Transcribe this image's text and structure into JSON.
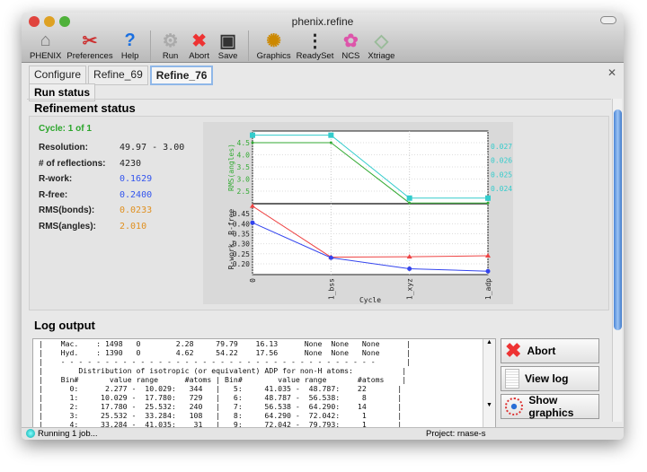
{
  "window": {
    "title": "phenix.refine"
  },
  "toolbar": [
    {
      "label": "PHENIX",
      "icon": "home-icon"
    },
    {
      "label": "Preferences",
      "icon": "tools-icon"
    },
    {
      "label": "Help",
      "icon": "help-icon"
    },
    {
      "label": "Run",
      "icon": "gear-icon"
    },
    {
      "label": "Abort",
      "icon": "abort-icon"
    },
    {
      "label": "Save",
      "icon": "save-icon"
    },
    {
      "label": "Graphics",
      "icon": "graphics-icon"
    },
    {
      "label": "ReadySet",
      "icon": "traffic-light-icon"
    },
    {
      "label": "NCS",
      "icon": "ncs-icon"
    },
    {
      "label": "Xtriage",
      "icon": "xtriage-icon"
    }
  ],
  "tabs": [
    "Configure",
    "Refine_69",
    "Refine_76"
  ],
  "active_tab": "Refine_76",
  "subtab": "Run status",
  "refinement": {
    "heading": "Refinement status",
    "cycle": "Cycle: 1 of 1",
    "stats": [
      {
        "label": "Resolution:",
        "value": "49.97 - 3.00",
        "color": "#222222"
      },
      {
        "label": "# of reflections:",
        "value": "4230",
        "color": "#222222"
      },
      {
        "label": "R-work:",
        "value": "0.1629",
        "color": "#3355ee"
      },
      {
        "label": "R-free:",
        "value": "0.2400",
        "color": "#3355ee"
      },
      {
        "label": "RMS(bonds):",
        "value": "0.0233",
        "color": "#e09020"
      },
      {
        "label": "RMS(angles):",
        "value": "2.010",
        "color": "#e09020"
      }
    ]
  },
  "chart_data": {
    "type": "line",
    "x": [
      "0",
      "1_bss",
      "1_xyz",
      "1_adp"
    ],
    "xlabel": "Cycle",
    "top": {
      "ylabel_left": "RMS(angles)",
      "ylabel_right": "RMS(bonds)",
      "ylim_left": [
        1.98,
        4.98
      ],
      "ylim_right": [
        0.0229,
        0.0281
      ],
      "yticks_left": [
        "2.5",
        "3.0",
        "3.5",
        "4.0",
        "4.5"
      ],
      "yticks_right": [
        "0.024",
        "0.025",
        "0.026",
        "0.027"
      ],
      "series": [
        {
          "name": "RMS(angles)",
          "axis": "left",
          "color": "#33aa33",
          "values": [
            4.5,
            4.5,
            2.01,
            2.01
          ]
        },
        {
          "name": "RMS(bonds)",
          "axis": "right",
          "color": "#33cccc",
          "values": [
            0.0278,
            0.0278,
            0.0233,
            0.0233
          ]
        }
      ]
    },
    "bottom": {
      "ylabel": "R-work, R-free",
      "ylim": [
        0.146,
        0.5
      ],
      "yticks": [
        "0.20",
        "0.25",
        "0.30",
        "0.35",
        "0.40",
        "0.45"
      ],
      "series": [
        {
          "name": "R-free",
          "color": "#ee4444",
          "values": [
            0.488,
            0.233,
            0.235,
            0.24
          ]
        },
        {
          "name": "R-work",
          "color": "#3344ee",
          "values": [
            0.405,
            0.23,
            0.175,
            0.163
          ]
        }
      ]
    },
    "grid": true
  },
  "log": {
    "heading": "Log output",
    "lines": [
      "|    Mac.    : 1498   0        2.28     79.79    16.13      None  None   None      |",
      "|    Hyd.    : 1390   0        4.62     54.22    17.56      None  None   None      |",
      "|    - - - - - - - - - - - - - - - - - - - - - - - - - - - - - - - - - - - -       |",
      "|        Distribution of isotropic (or equivalent) ADP for non-H atoms:           |",
      "|    Bin#       value range      #atoms | Bin#        value range       #atoms    |",
      "|      0:      2.277 -  10.029:   344   |   5:     41.035 -  48.787:    22       |",
      "|      1:     10.029 -  17.780:   729   |   6:     48.787 -  56.538:     8       |",
      "|      2:     17.780 -  25.532:   240   |   7:     56.538 -  64.290:    14       |",
      "|      3:     25.532 -  33.284:   108   |   8:     64.290 -  72.042:     1       |",
      "|      4:     33.284 -  41.035:    31   |   9:     72.042 -  79.793:     1       |"
    ]
  },
  "buttons": {
    "abort": "Abort",
    "view_log": "View log",
    "show_graphics": "Show graphics"
  },
  "status": {
    "text": "Running 1 job...",
    "project": "Project: rnase-s"
  }
}
